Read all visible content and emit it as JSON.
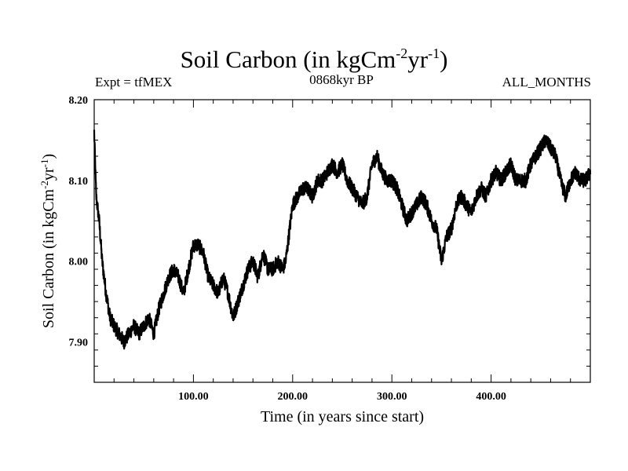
{
  "header": {
    "title_main": "Soil Carbon (in kgCm",
    "title_exp1": "-2",
    "title_mid": "yr",
    "title_exp2": "-1",
    "title_end": ")",
    "expt": "Expt = tfMEX",
    "period": "0868kyr BP",
    "months": "ALL_MONTHS"
  },
  "chart_data": {
    "type": "line",
    "title": "Soil Carbon (in kgCm-2yr-1)",
    "xlabel": "Time (in years since start)",
    "ylabel": "Soil Carbon (in kgCm-2yr-1)",
    "xlim": [
      0,
      500
    ],
    "ylim": [
      7.85,
      8.2
    ],
    "x_ticks": [
      100,
      200,
      300,
      400
    ],
    "x_tick_labels": [
      "100.00",
      "200.00",
      "300.00",
      "400.00"
    ],
    "y_ticks": [
      7.9,
      8.0,
      8.1,
      8.2
    ],
    "y_tick_labels": [
      "7.90",
      "8.00",
      "8.10",
      "8.20"
    ],
    "series": [
      {
        "name": "Soil Carbon",
        "x": [
          0,
          2,
          5,
          8,
          12,
          16,
          20,
          25,
          30,
          35,
          40,
          45,
          50,
          55,
          60,
          65,
          70,
          75,
          80,
          85,
          90,
          95,
          100,
          105,
          110,
          115,
          120,
          125,
          130,
          135,
          140,
          145,
          150,
          155,
          160,
          165,
          170,
          175,
          180,
          185,
          190,
          193,
          196,
          200,
          205,
          210,
          215,
          220,
          225,
          230,
          235,
          240,
          245,
          250,
          255,
          260,
          265,
          270,
          275,
          280,
          285,
          290,
          295,
          300,
          305,
          310,
          315,
          320,
          325,
          330,
          335,
          340,
          345,
          350,
          355,
          360,
          365,
          370,
          375,
          380,
          385,
          390,
          395,
          400,
          405,
          410,
          415,
          420,
          425,
          430,
          435,
          440,
          445,
          450,
          455,
          460,
          465,
          470,
          475,
          480,
          485,
          490,
          495,
          500
        ],
        "values": [
          8.16,
          8.08,
          8.05,
          8.0,
          7.96,
          7.93,
          7.92,
          7.91,
          7.9,
          7.91,
          7.92,
          7.91,
          7.92,
          7.93,
          7.91,
          7.94,
          7.96,
          7.98,
          7.99,
          7.98,
          7.96,
          7.99,
          8.02,
          8.02,
          8.01,
          7.98,
          7.97,
          7.96,
          7.98,
          7.96,
          7.93,
          7.95,
          7.97,
          7.99,
          8.0,
          7.98,
          8.01,
          7.99,
          7.99,
          8.0,
          7.99,
          8.0,
          8.03,
          8.07,
          8.08,
          8.09,
          8.09,
          8.08,
          8.1,
          8.1,
          8.11,
          8.12,
          8.11,
          8.12,
          8.1,
          8.09,
          8.08,
          8.07,
          8.08,
          8.12,
          8.13,
          8.11,
          8.1,
          8.1,
          8.09,
          8.07,
          8.05,
          8.06,
          8.07,
          8.08,
          8.07,
          8.05,
          8.04,
          8.0,
          8.03,
          8.04,
          8.07,
          8.08,
          8.07,
          8.06,
          8.08,
          8.09,
          8.08,
          8.1,
          8.11,
          8.1,
          8.11,
          8.12,
          8.1,
          8.1,
          8.1,
          8.12,
          8.13,
          8.14,
          8.15,
          8.14,
          8.13,
          8.1,
          8.08,
          8.1,
          8.11,
          8.1,
          8.1,
          8.11
        ]
      }
    ]
  }
}
